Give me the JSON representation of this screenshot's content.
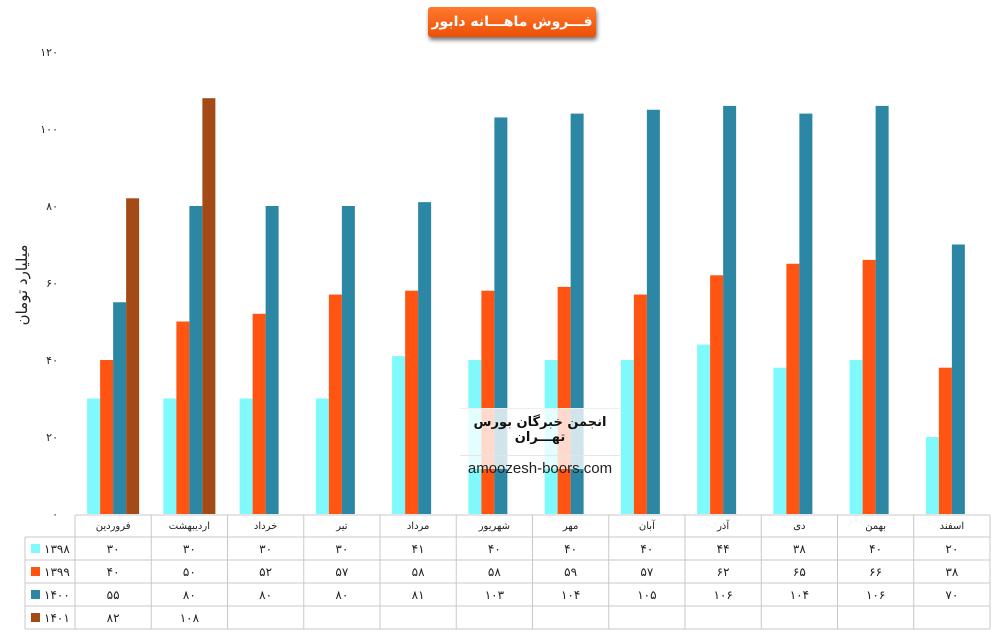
{
  "chart_data": {
    "type": "bar",
    "title": "فـــروش ماهـــانه دابور",
    "ylabel": "میلیارد تومان",
    "xlabel": "",
    "ylim": [
      0,
      120
    ],
    "yticks": [
      0,
      20,
      40,
      60,
      80,
      100,
      120
    ],
    "ytick_labels": [
      "۰",
      "۲۰",
      "۴۰",
      "۶۰",
      "۸۰",
      "۱۰۰",
      "۱۲۰"
    ],
    "grid": false,
    "legend": "data-table-left",
    "categories": [
      "فروردین",
      "اردیبهشت",
      "خرداد",
      "تیر",
      "مرداد",
      "شهریور",
      "مهر",
      "آبان",
      "آذر",
      "دی",
      "بهمن",
      "اسفند"
    ],
    "series": [
      {
        "name": "۱۳۹۸",
        "color": "#7ff9fb",
        "values": [
          30,
          30,
          30,
          30,
          41,
          40,
          40,
          40,
          44,
          38,
          40,
          20
        ],
        "labels": [
          "۳۰",
          "۳۰",
          "۳۰",
          "۳۰",
          "۴۱",
          "۴۰",
          "۴۰",
          "۴۰",
          "۴۴",
          "۳۸",
          "۴۰",
          "۲۰"
        ]
      },
      {
        "name": "۱۳۹۹",
        "color": "#ff5412",
        "values": [
          40,
          50,
          52,
          57,
          58,
          58,
          59,
          57,
          62,
          65,
          66,
          38
        ],
        "labels": [
          "۴۰",
          "۵۰",
          "۵۲",
          "۵۷",
          "۵۸",
          "۵۸",
          "۵۹",
          "۵۷",
          "۶۲",
          "۶۵",
          "۶۶",
          "۳۸"
        ]
      },
      {
        "name": "۱۴۰۰",
        "color": "#2b87a3",
        "values": [
          55,
          80,
          80,
          80,
          81,
          103,
          104,
          105,
          106,
          104,
          106,
          70
        ],
        "labels": [
          "۵۵",
          "۸۰",
          "۸۰",
          "۸۰",
          "۸۱",
          "۱۰۳",
          "۱۰۴",
          "۱۰۵",
          "۱۰۶",
          "۱۰۴",
          "۱۰۶",
          "۷۰"
        ]
      },
      {
        "name": "۱۴۰۱",
        "color": "#a34a16",
        "values": [
          82,
          108,
          null,
          null,
          null,
          null,
          null,
          null,
          null,
          null,
          null,
          null
        ],
        "labels": [
          "۸۲",
          "۱۰۸",
          "",
          "",
          "",
          "",
          "",
          "",
          "",
          "",
          "",
          ""
        ]
      }
    ]
  },
  "watermark": {
    "line1": "انجمن خبرگان بورس تهـــران",
    "line2": "amoozesh-boors.com"
  }
}
